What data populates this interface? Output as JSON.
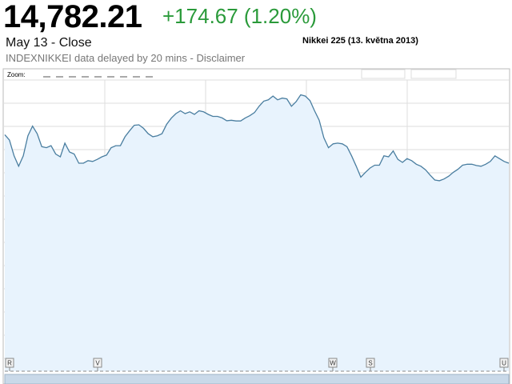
{
  "header": {
    "price": "14,782.21",
    "change": "+174.67 (1.20%)",
    "close_label": "May 13 - Close",
    "source": "INDEXNIKKEI data delayed by 20 mins - Disclaimer"
  },
  "chart_data": {
    "type": "area",
    "title": "Nikkei 225 (13. května 2013)",
    "xlabel": "",
    "ylabel": "",
    "grid": true,
    "zoom_label": "Zoom:",
    "series": [
      {
        "values": [
          93.0,
          90.9,
          84.7,
          80.6,
          84.7,
          92.6,
          96.4,
          93.4,
          88.3,
          87.9,
          88.7,
          85.4,
          84.3,
          89.7,
          86.2,
          85.4,
          81.8,
          81.8,
          82.8,
          82.5,
          83.3,
          84.3,
          85.0,
          87.9,
          88.7,
          88.7,
          92.2,
          94.6,
          96.7,
          96.9,
          95.5,
          93.4,
          92.2,
          92.6,
          93.4,
          97.1,
          99.5,
          101.3,
          102.4,
          101.3,
          102.0,
          101.0,
          102.4,
          102.0,
          101.0,
          100.2,
          100.2,
          99.6,
          98.5,
          98.7,
          98.4,
          98.4,
          99.6,
          100.5,
          101.7,
          104.2,
          106.2,
          106.7,
          108.2,
          106.7,
          107.4,
          107.1,
          104.2,
          106.0,
          108.7,
          108.2,
          106.4,
          102.4,
          98.7,
          91.8,
          87.9,
          89.4,
          89.7,
          89.4,
          88.3,
          84.7,
          80.6,
          76.3,
          78.2,
          79.9,
          81.0,
          81.0,
          84.7,
          84.3,
          86.6,
          83.3,
          82.1,
          83.6,
          82.8,
          81.4,
          80.6,
          79.2,
          77.1,
          75.2,
          74.9,
          75.6,
          76.7,
          78.2,
          79.4,
          81.0,
          81.4,
          81.4,
          80.9,
          80.6,
          81.4,
          82.5,
          84.7,
          83.6,
          82.5,
          81.8
        ]
      }
    ],
    "axis_markers": [
      "R",
      "V",
      "W",
      "S",
      "U"
    ],
    "colors": {
      "line": "#4a7ea0",
      "fill": "#e8f3fd",
      "grid": "#dddddd",
      "change": "#2a9a3a"
    }
  }
}
